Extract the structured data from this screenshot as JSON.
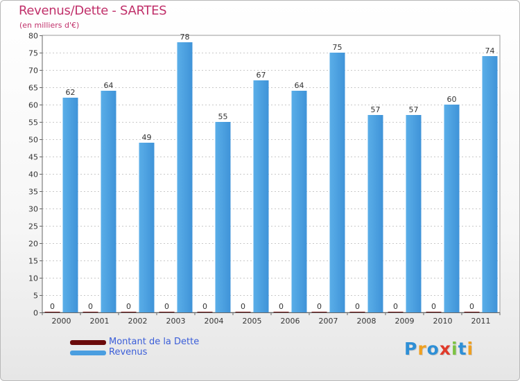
{
  "chart_data": {
    "type": "bar",
    "title": "Revenus/Dette - SARTES",
    "subtitle": "(en milliers d'€)",
    "categories": [
      "2000",
      "2001",
      "2002",
      "2003",
      "2004",
      "2005",
      "2006",
      "2007",
      "2008",
      "2009",
      "2010",
      "2011"
    ],
    "series": [
      {
        "name": "Montant de la Dette",
        "color": "#6b0a0a",
        "values": [
          0,
          0,
          0,
          0,
          0,
          0,
          0,
          0,
          0,
          0,
          0,
          0
        ]
      },
      {
        "name": "Revenus",
        "color": "#4a9ee0",
        "values": [
          62,
          64,
          49,
          78,
          55,
          67,
          64,
          75,
          57,
          57,
          60,
          74
        ]
      }
    ],
    "ylim": [
      0,
      80
    ],
    "yticks": [
      "0",
      "5",
      "10",
      "15",
      "20",
      "25",
      "30",
      "35",
      "40",
      "45",
      "50",
      "55",
      "60",
      "65",
      "70",
      "75",
      "80"
    ],
    "grid": true,
    "legend_placement": "bottom-left"
  },
  "logo": {
    "letters": [
      "P",
      "r",
      "o",
      "x",
      "i",
      "t",
      "i"
    ],
    "colors": [
      "#2e8fd6",
      "#f0a020",
      "#2e8fd6",
      "#e03a2a",
      "#7cc242",
      "#2e8fd6",
      "#f0a020"
    ]
  }
}
